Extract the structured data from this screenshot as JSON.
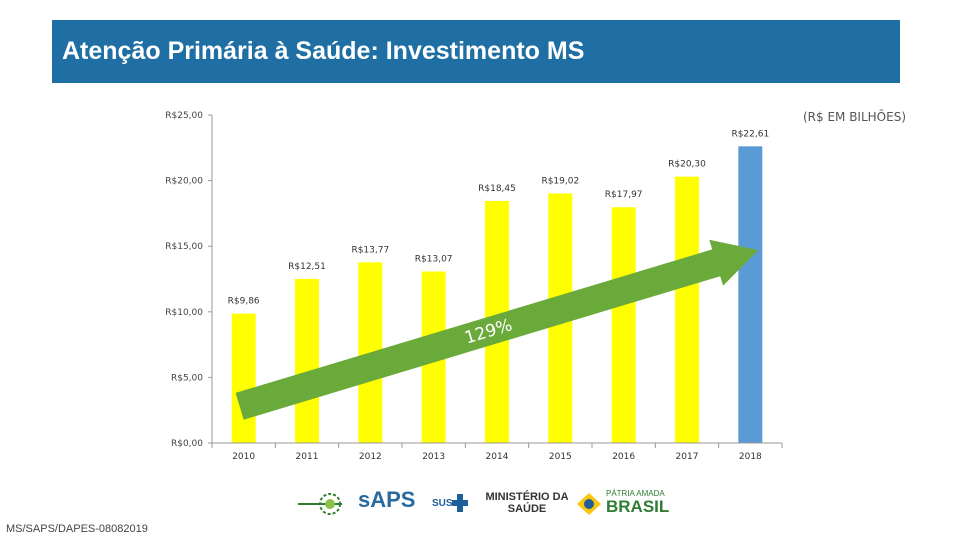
{
  "header": {
    "title": "Atenção Primária à Saúde: Investimento MS",
    "units_note": "(R$ EM BILHÕES)"
  },
  "footer": {
    "code": "MS/SAPS/DAPES-08082019"
  },
  "logos": {
    "saps": "sAPS",
    "sus": "SUS",
    "ministerio": "MINISTÉRIO DA SAÚDE",
    "patria": "PÁTRIA AMADA",
    "brasil": "BRASIL"
  },
  "colors": {
    "title_bg": "#1f6fa5",
    "bar_default": "#ffff00",
    "bar_highlight": "#5b9bd5",
    "arrow": "#6aaa3a"
  },
  "chart_data": {
    "type": "bar",
    "categories": [
      "2010",
      "2011",
      "2012",
      "2013",
      "2014",
      "2015",
      "2016",
      "2017",
      "2018"
    ],
    "values": [
      9.86,
      12.51,
      13.77,
      13.07,
      18.45,
      19.02,
      17.97,
      20.3,
      22.61
    ],
    "data_labels": [
      "R$9,86",
      "R$12,51",
      "R$13,77",
      "R$13,07",
      "R$18,45",
      "R$19,02",
      "R$17,97",
      "R$20,30",
      "R$22,61"
    ],
    "highlight_index": 8,
    "ylim": [
      0,
      25
    ],
    "yticks": [
      0,
      5,
      10,
      15,
      20,
      25
    ],
    "ytick_labels": [
      "R$0,00",
      "R$5,00",
      "R$10,00",
      "R$15,00",
      "R$20,00",
      "R$25,00"
    ],
    "annotation": "129%",
    "grid": false
  }
}
